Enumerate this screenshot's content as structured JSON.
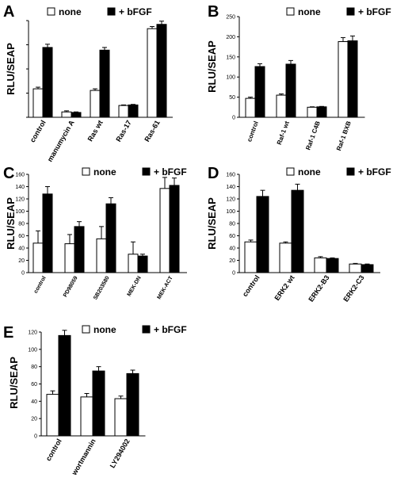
{
  "legend": {
    "none_label": "none",
    "bfgf_label": "+ bFGF"
  },
  "colors": {
    "none": "#ffffff",
    "bfgf": "#000000",
    "axis": "#000000"
  },
  "chart_data": [
    {
      "panel": "A",
      "type": "bar",
      "ylabel": "RLU/SEAP",
      "ylim": [
        0,
        180
      ],
      "yticks": [],
      "categories": [
        "control",
        "manumycin A",
        "Ras wt",
        "Ras-17",
        "Ras-61"
      ],
      "series": [
        {
          "name": "none",
          "values": [
            53,
            10,
            50,
            22,
            165
          ],
          "errors": [
            3,
            2,
            3,
            1,
            4
          ]
        },
        {
          "name": "+ bFGF",
          "values": [
            130,
            9,
            125,
            23,
            173
          ],
          "errors": [
            6,
            1,
            5,
            1,
            6
          ]
        }
      ]
    },
    {
      "panel": "B",
      "type": "bar",
      "ylabel": "RLU/SEAP",
      "ylim": [
        0,
        250
      ],
      "yticks": [
        0,
        50,
        100,
        150,
        200,
        250
      ],
      "categories": [
        "control",
        "Raf-1 wt",
        "Raf-1 C4B",
        "Raf-1 BXB"
      ],
      "series": [
        {
          "name": "none",
          "values": [
            47,
            55,
            25,
            188
          ],
          "errors": [
            3,
            3,
            1,
            10
          ]
        },
        {
          "name": "+ bFGF",
          "values": [
            126,
            132,
            26,
            190
          ],
          "errors": [
            7,
            9,
            1,
            12
          ]
        }
      ]
    },
    {
      "panel": "C",
      "type": "bar",
      "ylabel": "RLU/SEAP",
      "ylim": [
        0,
        160
      ],
      "yticks": [
        0,
        20,
        40,
        60,
        80,
        100,
        120,
        140,
        160
      ],
      "categories": [
        "control",
        "PD98059",
        "SB203580",
        "MEK-DN",
        "MEK-ACT"
      ],
      "series": [
        {
          "name": "none",
          "values": [
            48,
            47,
            55,
            30,
            137
          ],
          "errors": [
            20,
            15,
            20,
            20,
            18
          ]
        },
        {
          "name": "+ bFGF",
          "values": [
            128,
            75,
            112,
            27,
            142
          ],
          "errors": [
            12,
            8,
            10,
            3,
            12
          ]
        }
      ]
    },
    {
      "panel": "D",
      "type": "bar",
      "ylabel": "RLU/SEAP",
      "ylim": [
        0,
        160
      ],
      "yticks": [
        0,
        20,
        40,
        60,
        80,
        100,
        120,
        140,
        160
      ],
      "categories": [
        "control",
        "ERK2 wt",
        "ERK2-B3",
        "ERK2-C3"
      ],
      "series": [
        {
          "name": "none",
          "values": [
            50,
            48,
            24,
            14
          ],
          "errors": [
            3,
            2,
            2,
            1
          ]
        },
        {
          "name": "+ bFGF",
          "values": [
            124,
            134,
            23,
            13
          ],
          "errors": [
            10,
            10,
            1,
            1
          ]
        }
      ]
    },
    {
      "panel": "E",
      "type": "bar",
      "ylabel": "RLU/SEAP",
      "ylim": [
        0,
        120
      ],
      "yticks": [
        0,
        20,
        40,
        60,
        80,
        100,
        120
      ],
      "categories": [
        "control",
        "wortmannin",
        "LY294002"
      ],
      "series": [
        {
          "name": "none",
          "values": [
            48,
            45,
            43
          ],
          "errors": [
            4,
            4,
            3
          ]
        },
        {
          "name": "+ bFGF",
          "values": [
            116,
            75,
            72
          ],
          "errors": [
            6,
            5,
            4
          ]
        }
      ]
    }
  ]
}
